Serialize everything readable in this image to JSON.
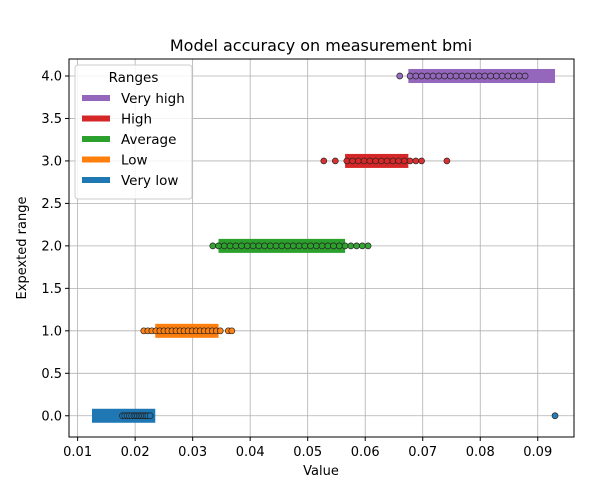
{
  "chart_data": {
    "type": "scatter",
    "title": "Model accuracy on measurement bmi",
    "xlabel": "Value",
    "ylabel": "Expexted range",
    "xlim": [
      0.0085,
      0.0963
    ],
    "ylim": [
      -0.25,
      4.2
    ],
    "x_ticks": [
      0.01,
      0.02,
      0.03,
      0.04,
      0.05,
      0.06,
      0.07,
      0.08,
      0.09
    ],
    "x_tick_labels": [
      "0.01",
      "0.02",
      "0.03",
      "0.04",
      "0.05",
      "0.06",
      "0.07",
      "0.08",
      "0.09"
    ],
    "y_ticks": [
      0.0,
      0.5,
      1.0,
      1.5,
      2.0,
      2.5,
      3.0,
      3.5,
      4.0
    ],
    "y_tick_labels": [
      "0.0",
      "0.5",
      "1.0",
      "1.5",
      "2.0",
      "2.5",
      "3.0",
      "3.5",
      "4.0"
    ],
    "grid": true,
    "legend": {
      "title": "Ranges",
      "placement": "top-left",
      "entries": [
        "Very high",
        "High",
        "Average",
        "Low",
        "Very low"
      ]
    },
    "ranges": [
      {
        "name": "Very low",
        "y": 0,
        "color": "#1f77b4",
        "bar_start": 0.0125,
        "bar_end": 0.0235,
        "points": [
          0.0178,
          0.0182,
          0.0186,
          0.019,
          0.0194,
          0.0198,
          0.0201,
          0.0204,
          0.0207,
          0.021,
          0.0213,
          0.0216,
          0.0219,
          0.0222,
          0.0226,
          0.093
        ]
      },
      {
        "name": "Low",
        "y": 1,
        "color": "#ff7f0e",
        "bar_start": 0.0235,
        "bar_end": 0.0345,
        "points": [
          0.0215,
          0.0222,
          0.0229,
          0.0236,
          0.0243,
          0.025,
          0.0257,
          0.0264,
          0.0271,
          0.0278,
          0.0285,
          0.0292,
          0.0299,
          0.0306,
          0.0313,
          0.032,
          0.0327,
          0.0334,
          0.0341,
          0.0348,
          0.0362,
          0.0368
        ]
      },
      {
        "name": "Average",
        "y": 2,
        "color": "#2ca02c",
        "bar_start": 0.0345,
        "bar_end": 0.0565,
        "points": [
          0.0335,
          0.0345,
          0.0355,
          0.0365,
          0.0375,
          0.0385,
          0.0395,
          0.0405,
          0.0415,
          0.0425,
          0.0435,
          0.0445,
          0.0455,
          0.0465,
          0.0475,
          0.0485,
          0.0495,
          0.0505,
          0.0515,
          0.0525,
          0.0535,
          0.0545,
          0.0555,
          0.0565,
          0.0575,
          0.0585,
          0.0595,
          0.0605
        ]
      },
      {
        "name": "High",
        "y": 3,
        "color": "#d62728",
        "bar_start": 0.0565,
        "bar_end": 0.0675,
        "points": [
          0.0528,
          0.0548,
          0.0568,
          0.0578,
          0.0588,
          0.0598,
          0.0608,
          0.0618,
          0.0628,
          0.0638,
          0.0648,
          0.0658,
          0.0668,
          0.0678,
          0.0688,
          0.0698,
          0.0742
        ]
      },
      {
        "name": "Very high",
        "y": 4,
        "color": "#9467bd",
        "bar_start": 0.0675,
        "bar_end": 0.093,
        "points": [
          0.066,
          0.0678,
          0.0688,
          0.0698,
          0.0708,
          0.0718,
          0.0728,
          0.0738,
          0.0748,
          0.0758,
          0.0768,
          0.0778,
          0.0788,
          0.0798,
          0.0808,
          0.0818,
          0.0828,
          0.0838,
          0.0848,
          0.0858,
          0.0868,
          0.0878
        ]
      }
    ]
  }
}
